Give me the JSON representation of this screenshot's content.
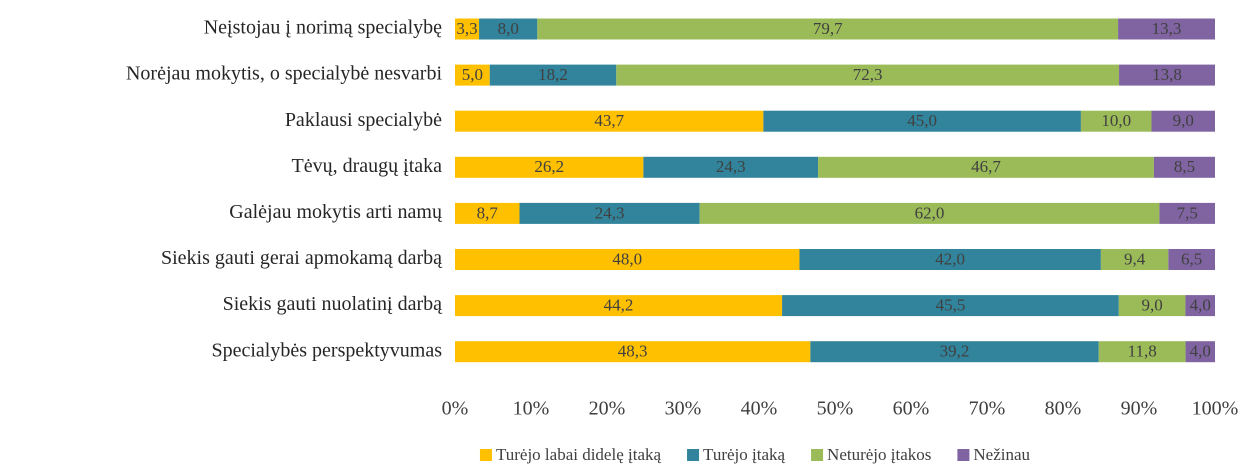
{
  "chart_data": {
    "type": "bar",
    "orientation": "horizontal",
    "stacked": "percent",
    "categories": [
      "Neįstojau į norimą specialybę",
      "Norėjau mokytis, o specialybė nesvarbi",
      "Paklausi specialybė",
      "Tėvų, draugų įtaka",
      "Galėjau mokytis arti namų",
      "Siekis gauti gerai apmokamą darbą",
      "Siekis gauti nuolatinį darbą",
      "Specialybės perspektyvumas"
    ],
    "series": [
      {
        "name": "Turėjo labai didelę įtaką",
        "color": "#FFC000",
        "values": [
          3.3,
          5.0,
          43.7,
          26.2,
          8.7,
          48.0,
          44.2,
          48.3
        ],
        "value_labels": [
          "3,3",
          "5,0",
          "43,7",
          "26,2",
          "8,7",
          "48,0",
          "44,2",
          "48,3"
        ]
      },
      {
        "name": "Turėjo įtaką",
        "color": "#31849B",
        "values": [
          8.0,
          18.2,
          45.0,
          24.3,
          24.3,
          42.0,
          45.5,
          39.2
        ],
        "value_labels": [
          "8,0",
          "18,2",
          "45,0",
          "24,3",
          "24,3",
          "42,0",
          "45,5",
          "39,2"
        ]
      },
      {
        "name": "Neturėjo įtakos",
        "color": "#9BBB59",
        "values": [
          79.7,
          72.3,
          10.0,
          46.7,
          62.0,
          9.4,
          9.0,
          11.8
        ],
        "value_labels": [
          "79,7",
          "72,3",
          "10,0",
          "46,7",
          "62,0",
          "9,4",
          "9,0",
          "11,8"
        ]
      },
      {
        "name": "Nežinau",
        "color": "#8064A2",
        "values": [
          13.3,
          13.8,
          9.0,
          8.5,
          7.5,
          6.5,
          4.0,
          4.0
        ],
        "value_labels": [
          "13,3",
          "13,8",
          "9,0",
          "8,5",
          "7,5",
          "6,5",
          "4,0",
          "4,0"
        ]
      }
    ],
    "xlim": [
      0,
      100
    ],
    "xticks": [
      {
        "value": 0,
        "label": "0%"
      },
      {
        "value": 10,
        "label": "10%"
      },
      {
        "value": 20,
        "label": "20%"
      },
      {
        "value": 30,
        "label": "30%"
      },
      {
        "value": 40,
        "label": "40%"
      },
      {
        "value": 50,
        "label": "50%"
      },
      {
        "value": 60,
        "label": "60%"
      },
      {
        "value": 70,
        "label": "70%"
      },
      {
        "value": 80,
        "label": "80%"
      },
      {
        "value": 90,
        "label": "90%"
      },
      {
        "value": 100,
        "label": "100%"
      }
    ],
    "grid": false,
    "legend": "bottom"
  }
}
